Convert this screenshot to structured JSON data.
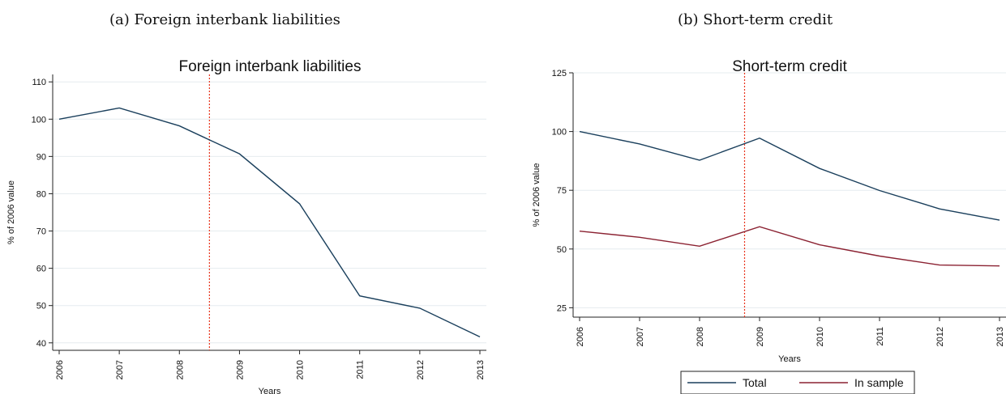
{
  "captions": {
    "a": "(a) Foreign interbank liabilities",
    "b": "(b) Short-term credit"
  },
  "colors": {
    "total": "#1a3f5c",
    "in_sample": "#8b2232",
    "vline": "#e8341c",
    "grid": "#e6ecef"
  },
  "chart_data": [
    {
      "type": "line",
      "title": "Foreign interbank liabilities",
      "xlabel": "Years",
      "ylabel": "% of 2006 value",
      "x": [
        2006,
        2007,
        2008,
        2009,
        2010,
        2011,
        2012,
        2013
      ],
      "x_tick_labels": [
        "2006",
        "2007",
        "2008",
        "2009",
        "2010",
        "2011",
        "2012",
        "2013"
      ],
      "y_ticks": [
        40,
        50,
        60,
        70,
        80,
        90,
        100,
        110
      ],
      "ylim": [
        38,
        112
      ],
      "xlim": [
        2006,
        2013
      ],
      "grid": true,
      "reference_line_x": 2008.5,
      "series": [
        {
          "values": [
            100,
            103,
            98.2,
            90.7,
            77.3,
            52.6,
            49.3,
            41.6
          ]
        }
      ]
    },
    {
      "type": "line",
      "title": "Short-term credit",
      "xlabel": "Years",
      "ylabel": "% of 2006 value",
      "x": [
        2006,
        2007,
        2008,
        2009,
        2010,
        2011,
        2012,
        2013
      ],
      "x_tick_labels": [
        "2006",
        "2007",
        "2008",
        "2009",
        "2010",
        "2011",
        "2012",
        "2013"
      ],
      "y_ticks": [
        25,
        50,
        75,
        100,
        125
      ],
      "ylim": [
        21,
        125
      ],
      "xlim": [
        2006,
        2013
      ],
      "grid": true,
      "reference_line_x": 2008.75,
      "legend_position": "bottom",
      "series": [
        {
          "name": "Total",
          "values": [
            100,
            94.7,
            87.8,
            97.2,
            84.3,
            74.9,
            67.1,
            62.3
          ]
        },
        {
          "name": "In sample",
          "values": [
            57.6,
            55.0,
            51.2,
            59.5,
            51.8,
            47.0,
            43.2,
            42.8
          ]
        }
      ]
    }
  ]
}
